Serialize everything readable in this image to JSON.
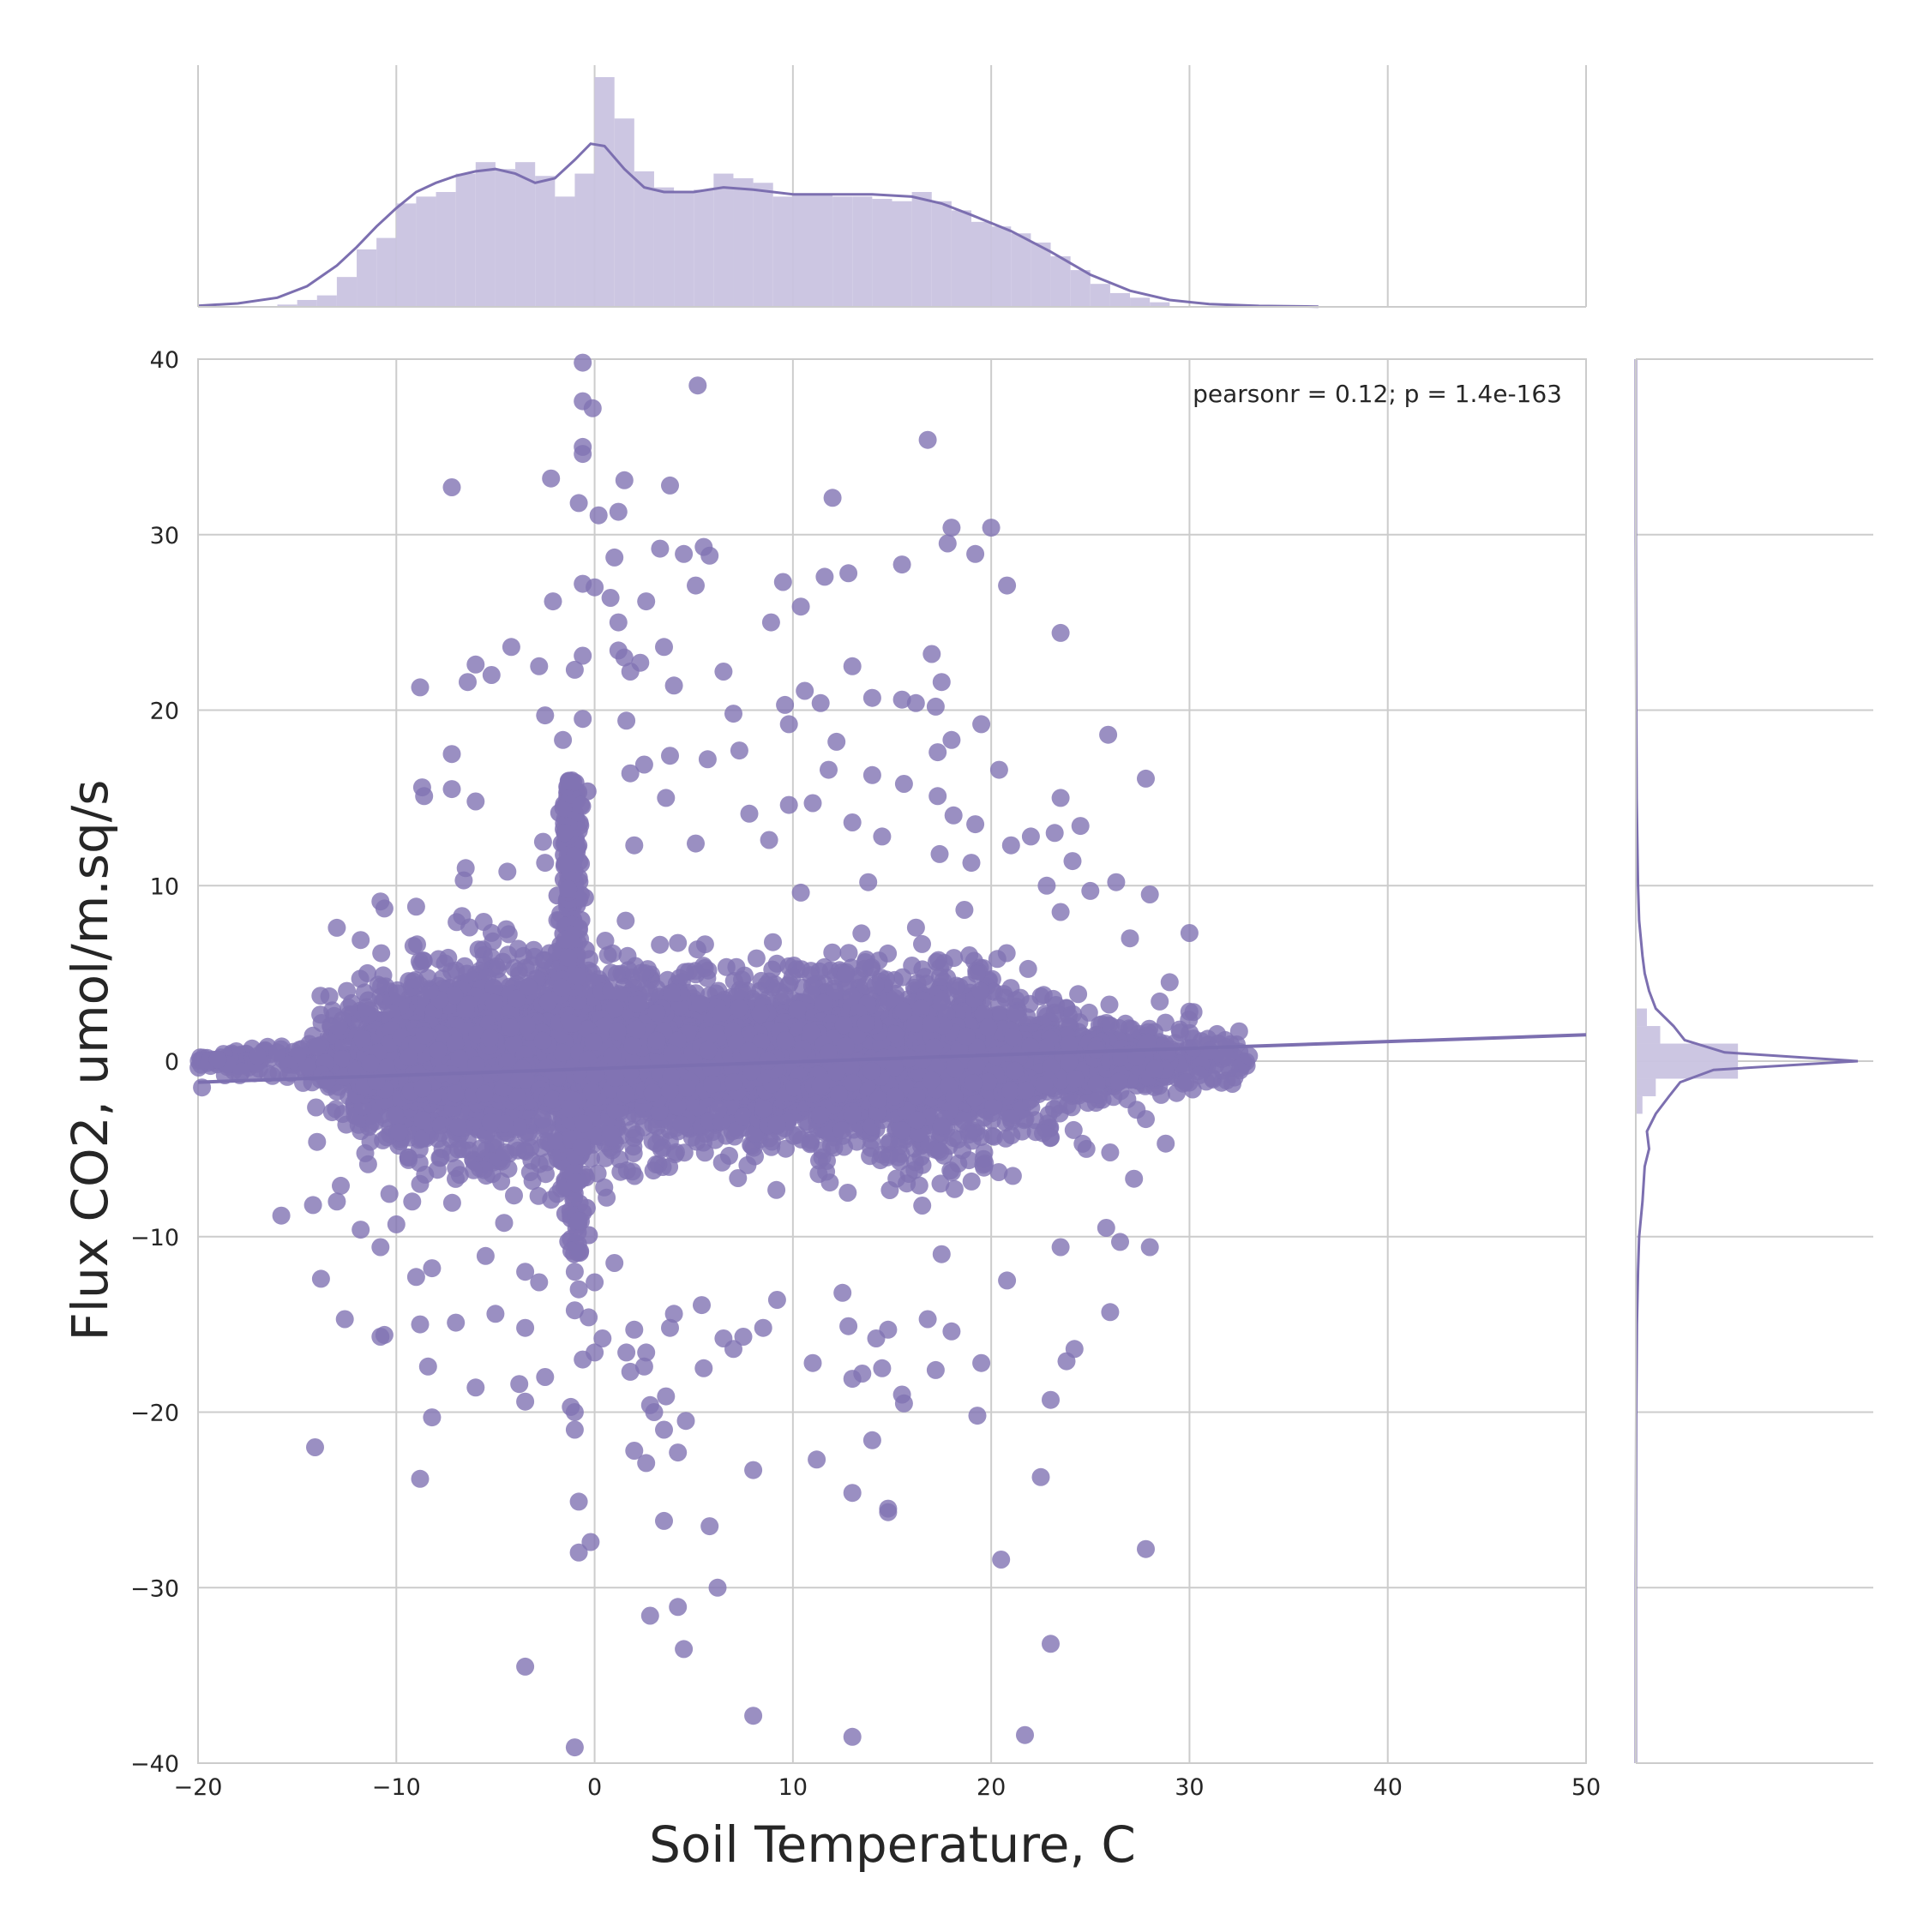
{
  "colors": {
    "point": "#8173b3",
    "kde": "#7c6fb0",
    "hist_fill": "#c9c3e0",
    "grid": "#cccccc",
    "spine": "#cccccc",
    "text": "#262626"
  },
  "chart_data": {
    "type": "scatter",
    "xlabel": "Soil Temperature, C",
    "ylabel": "Flux CO2, umol/m.sq/s",
    "xlim": [
      -20,
      50
    ],
    "ylim": [
      -40,
      40
    ],
    "xticks": [
      "−20",
      "−10",
      "0",
      "10",
      "20",
      "30",
      "40",
      "50"
    ],
    "xtick_values": [
      -20,
      -10,
      0,
      10,
      20,
      30,
      40,
      50
    ],
    "yticks": [
      "−40",
      "−30",
      "−20",
      "−10",
      "0",
      "10",
      "20",
      "30",
      "40"
    ],
    "ytick_values": [
      -40,
      -30,
      -20,
      -10,
      0,
      10,
      20,
      30,
      40
    ],
    "grid": true,
    "annotation": "pearsonr = 0.12; p = 1.4e-163",
    "dense_core": {
      "x_range": [
        -20,
        33
      ],
      "y_spread_per_x": [
        [
          -20,
          0.6
        ],
        [
          -15,
          1.2
        ],
        [
          -12,
          4.5
        ],
        [
          -8,
          6.0
        ],
        [
          -4,
          6.5
        ],
        [
          -1,
          7.0
        ],
        [
          0,
          6.0
        ],
        [
          3,
          5.5
        ],
        [
          6,
          5.0
        ],
        [
          10,
          5.5
        ],
        [
          15,
          6.5
        ],
        [
          20,
          5.5
        ],
        [
          25,
          4.0
        ],
        [
          28,
          3.0
        ],
        [
          31,
          1.5
        ],
        [
          33,
          0.8
        ]
      ]
    },
    "outliers": [
      [
        -0.6,
        39.8
      ],
      [
        5.2,
        38.5
      ],
      [
        -0.6,
        37.6
      ],
      [
        -0.1,
        37.2
      ],
      [
        16.8,
        35.4
      ],
      [
        -0.6,
        35.0
      ],
      [
        -0.6,
        34.6
      ],
      [
        -2.2,
        33.2
      ],
      [
        1.5,
        33.1
      ],
      [
        3.8,
        32.8
      ],
      [
        -7.2,
        32.7
      ],
      [
        -0.8,
        31.8
      ],
      [
        12.0,
        32.1
      ],
      [
        0.2,
        31.1
      ],
      [
        1.2,
        31.3
      ],
      [
        18.0,
        30.4
      ],
      [
        20.0,
        30.4
      ],
      [
        17.8,
        29.5
      ],
      [
        3.3,
        29.2
      ],
      [
        5.5,
        29.3
      ],
      [
        4.5,
        28.9
      ],
      [
        5.8,
        28.8
      ],
      [
        19.2,
        28.9
      ],
      [
        15.5,
        28.3
      ],
      [
        1.0,
        28.7
      ],
      [
        12.8,
        27.8
      ],
      [
        11.6,
        27.6
      ],
      [
        9.5,
        27.3
      ],
      [
        -0.6,
        27.2
      ],
      [
        0.0,
        27.0
      ],
      [
        5.1,
        27.1
      ],
      [
        20.8,
        27.1
      ],
      [
        0.8,
        26.4
      ],
      [
        2.6,
        26.2
      ],
      [
        -2.1,
        26.2
      ],
      [
        10.4,
        25.9
      ],
      [
        8.9,
        25.0
      ],
      [
        1.2,
        25.0
      ],
      [
        23.5,
        24.4
      ],
      [
        3.5,
        23.6
      ],
      [
        -4.2,
        23.6
      ],
      [
        1.2,
        23.4
      ],
      [
        17.0,
        23.2
      ],
      [
        -0.6,
        23.1
      ],
      [
        1.5,
        23.0
      ],
      [
        -6.0,
        22.6
      ],
      [
        -5.2,
        22.0
      ],
      [
        -2.8,
        22.5
      ],
      [
        2.3,
        22.7
      ],
      [
        1.8,
        22.2
      ],
      [
        -1.0,
        22.3
      ],
      [
        6.5,
        22.2
      ],
      [
        13.0,
        22.5
      ],
      [
        -6.4,
        21.6
      ],
      [
        -8.8,
        21.3
      ],
      [
        4.0,
        21.4
      ],
      [
        10.6,
        21.1
      ],
      [
        17.5,
        21.6
      ],
      [
        14.0,
        20.7
      ],
      [
        15.5,
        20.6
      ],
      [
        16.2,
        20.4
      ],
      [
        11.4,
        20.4
      ],
      [
        9.6,
        20.3
      ],
      [
        17.2,
        20.2
      ],
      [
        -2.5,
        19.7
      ],
      [
        7.0,
        19.8
      ],
      [
        19.5,
        19.2
      ],
      [
        9.8,
        19.2
      ],
      [
        -0.6,
        19.5
      ],
      [
        1.6,
        19.4
      ],
      [
        25.9,
        18.6
      ],
      [
        12.2,
        18.2
      ],
      [
        18.0,
        18.3
      ],
      [
        -1.6,
        18.3
      ],
      [
        27.8,
        16.1
      ],
      [
        7.3,
        17.7
      ],
      [
        -7.2,
        17.5
      ],
      [
        3.8,
        17.4
      ],
      [
        5.7,
        17.2
      ],
      [
        17.3,
        17.6
      ],
      [
        2.5,
        16.9
      ],
      [
        1.8,
        16.4
      ],
      [
        11.8,
        16.6
      ],
      [
        14.0,
        16.3
      ],
      [
        20.4,
        16.6
      ],
      [
        -8.7,
        15.6
      ],
      [
        -8.6,
        15.1
      ],
      [
        -7.2,
        15.5
      ],
      [
        3.6,
        15.0
      ],
      [
        15.6,
        15.8
      ],
      [
        17.3,
        15.1
      ],
      [
        23.5,
        15.0
      ],
      [
        -6.0,
        14.8
      ],
      [
        9.8,
        14.6
      ],
      [
        11.0,
        14.7
      ],
      [
        7.8,
        14.1
      ],
      [
        13.0,
        13.6
      ],
      [
        18.1,
        14.0
      ],
      [
        19.2,
        13.5
      ],
      [
        24.5,
        13.4
      ],
      [
        -1.5,
        13.0
      ],
      [
        -2.6,
        12.5
      ],
      [
        2.0,
        12.3
      ],
      [
        5.1,
        12.4
      ],
      [
        21.0,
        12.3
      ],
      [
        -2.5,
        11.3
      ],
      [
        -6.5,
        11.0
      ],
      [
        -4.4,
        10.8
      ],
      [
        -6.6,
        10.3
      ],
      [
        8.8,
        12.6
      ],
      [
        14.5,
        12.8
      ],
      [
        17.4,
        11.8
      ],
      [
        19.0,
        11.3
      ],
      [
        22.0,
        12.8
      ],
      [
        23.2,
        13.0
      ],
      [
        24.1,
        11.4
      ],
      [
        26.3,
        10.2
      ],
      [
        28.0,
        9.5
      ],
      [
        25.0,
        9.7
      ],
      [
        -10.8,
        9.1
      ],
      [
        -10.6,
        8.7
      ],
      [
        -13.0,
        7.6
      ],
      [
        -11.8,
        6.9
      ],
      [
        23.5,
        8.5
      ],
      [
        30.0,
        7.3
      ],
      [
        -9.0,
        8.8
      ],
      [
        22.8,
        10.0
      ],
      [
        13.8,
        10.2
      ],
      [
        10.4,
        9.6
      ],
      [
        27.0,
        7.0
      ],
      [
        -17.0,
        0.3
      ],
      [
        -18.5,
        -0.2
      ],
      [
        -19.8,
        -1.5
      ],
      [
        -16.0,
        0.5
      ],
      [
        -15.5,
        -0.9
      ],
      [
        -14.0,
        0.8
      ],
      [
        -13.5,
        -1.1
      ],
      [
        -19.0,
        0.1
      ],
      [
        -17.8,
        -0.6
      ],
      [
        31.0,
        0.6
      ],
      [
        32.5,
        1.7
      ],
      [
        33.0,
        0.3
      ],
      [
        31.8,
        1.2
      ],
      [
        32.0,
        -0.4
      ],
      [
        30.5,
        -0.8
      ],
      [
        29.8,
        -1.2
      ],
      [
        29.5,
        1.8
      ],
      [
        30.2,
        2.8
      ],
      [
        28.5,
        3.4
      ],
      [
        29.0,
        4.5
      ],
      [
        28.8,
        -4.7
      ],
      [
        27.8,
        -3.3
      ],
      [
        26.0,
        -5.2
      ],
      [
        27.2,
        -6.7
      ],
      [
        24.8,
        -5.0
      ],
      [
        -14.0,
        -4.6
      ],
      [
        -15.8,
        -8.8
      ],
      [
        -14.2,
        -8.2
      ],
      [
        -13.0,
        -8.0
      ],
      [
        -12.8,
        -7.1
      ],
      [
        -11.8,
        -9.6
      ],
      [
        -10.8,
        -10.6
      ],
      [
        -10.0,
        -9.3
      ],
      [
        -9.2,
        -8.0
      ],
      [
        -8.8,
        -7.0
      ],
      [
        -8.2,
        -11.8
      ],
      [
        -9.0,
        -12.3
      ],
      [
        -8.4,
        -17.4
      ],
      [
        -10.8,
        -15.7
      ],
      [
        -10.6,
        -15.6
      ],
      [
        -12.6,
        -14.7
      ],
      [
        -13.8,
        -12.4
      ],
      [
        -8.8,
        -15.0
      ],
      [
        -6.0,
        -18.6
      ],
      [
        -3.8,
        -18.4
      ],
      [
        -3.5,
        -19.4
      ],
      [
        -2.5,
        -18.0
      ],
      [
        -1.2,
        -19.7
      ],
      [
        -1.0,
        -20.0
      ],
      [
        -1.0,
        -21.0
      ],
      [
        -7.0,
        -14.9
      ],
      [
        -5.0,
        -14.4
      ],
      [
        -3.5,
        -15.2
      ],
      [
        -5.5,
        -11.1
      ],
      [
        -3.5,
        -12.0
      ],
      [
        -2.8,
        -12.6
      ],
      [
        -1.0,
        -12.0
      ],
      [
        -0.8,
        -13.0
      ],
      [
        -1.0,
        -14.2
      ],
      [
        -0.3,
        -14.6
      ],
      [
        0.0,
        -16.6
      ],
      [
        -0.6,
        -17.0
      ],
      [
        0.4,
        -15.8
      ],
      [
        0.0,
        -12.6
      ],
      [
        1.0,
        -11.5
      ],
      [
        2.0,
        -15.3
      ],
      [
        1.6,
        -16.6
      ],
      [
        1.8,
        -17.7
      ],
      [
        2.6,
        -16.6
      ],
      [
        2.5,
        -17.4
      ],
      [
        2.8,
        -19.6
      ],
      [
        3.6,
        -19.1
      ],
      [
        3.0,
        -20.0
      ],
      [
        2.0,
        -22.2
      ],
      [
        2.6,
        -22.9
      ],
      [
        3.5,
        -21.0
      ],
      [
        4.2,
        -22.3
      ],
      [
        4.6,
        -20.5
      ],
      [
        4.0,
        -14.4
      ],
      [
        3.8,
        -15.2
      ],
      [
        5.5,
        -17.5
      ],
      [
        5.4,
        -13.9
      ],
      [
        6.5,
        -15.8
      ],
      [
        7.0,
        -16.4
      ],
      [
        7.5,
        -15.7
      ],
      [
        8.5,
        -15.2
      ],
      [
        9.2,
        -13.6
      ],
      [
        11.0,
        -17.2
      ],
      [
        11.2,
        -22.7
      ],
      [
        12.8,
        -15.1
      ],
      [
        12.5,
        -13.2
      ],
      [
        13.0,
        -18.1
      ],
      [
        13.5,
        -17.8
      ],
      [
        14.0,
        -21.6
      ],
      [
        14.2,
        -15.8
      ],
      [
        14.8,
        -15.3
      ],
      [
        14.5,
        -17.5
      ],
      [
        15.5,
        -19.0
      ],
      [
        15.6,
        -19.5
      ],
      [
        17.2,
        -17.6
      ],
      [
        16.8,
        -14.7
      ],
      [
        18.0,
        -15.4
      ],
      [
        19.3,
        -20.2
      ],
      [
        19.5,
        -17.2
      ],
      [
        22.5,
        -23.7
      ],
      [
        23.0,
        -19.3
      ],
      [
        23.8,
        -17.1
      ],
      [
        24.2,
        -16.4
      ],
      [
        26.0,
        -14.3
      ],
      [
        26.5,
        -10.3
      ],
      [
        28.0,
        -10.6
      ],
      [
        23.5,
        -10.6
      ],
      [
        25.8,
        -9.5
      ],
      [
        20.8,
        -12.5
      ],
      [
        17.5,
        -11.0
      ],
      [
        -14.1,
        -22.0
      ],
      [
        -8.8,
        -23.8
      ],
      [
        -8.2,
        -20.3
      ],
      [
        -0.8,
        -25.1
      ],
      [
        -0.2,
        -27.4
      ],
      [
        -0.8,
        -28.0
      ],
      [
        2.8,
        -31.6
      ],
      [
        4.2,
        -31.1
      ],
      [
        4.5,
        -33.5
      ],
      [
        5.8,
        -26.5
      ],
      [
        6.2,
        -30.0
      ],
      [
        3.5,
        -26.2
      ],
      [
        8.0,
        -23.3
      ],
      [
        13.0,
        -24.6
      ],
      [
        14.8,
        -25.5
      ],
      [
        14.8,
        -25.7
      ],
      [
        20.5,
        -28.4
      ],
      [
        27.8,
        -27.8
      ],
      [
        23.0,
        -33.2
      ],
      [
        -3.5,
        -34.5
      ],
      [
        -1.0,
        -39.1
      ],
      [
        8.0,
        -37.3
      ],
      [
        13.0,
        -38.5
      ],
      [
        21.7,
        -38.4
      ]
    ],
    "regression_line": {
      "x": [
        -20,
        50
      ],
      "y": [
        -1.2,
        1.5
      ]
    },
    "marginal_x": {
      "bin_edges": [
        -20,
        50
      ],
      "bin_width": 1,
      "hist_bins": [
        [
          -16,
          0.01
        ],
        [
          -15,
          0.03
        ],
        [
          -14,
          0.05
        ],
        [
          -13,
          0.13
        ],
        [
          -12,
          0.25
        ],
        [
          -11,
          0.3
        ],
        [
          -10,
          0.45
        ],
        [
          -9,
          0.48
        ],
        [
          -8,
          0.5
        ],
        [
          -7,
          0.58
        ],
        [
          -6,
          0.63
        ],
        [
          -5,
          0.6
        ],
        [
          -4,
          0.63
        ],
        [
          -3,
          0.57
        ],
        [
          -2,
          0.48
        ],
        [
          -1,
          0.58
        ],
        [
          0,
          1.0
        ],
        [
          1,
          0.82
        ],
        [
          2,
          0.59
        ],
        [
          3,
          0.52
        ],
        [
          4,
          0.5
        ],
        [
          5,
          0.51
        ],
        [
          6,
          0.58
        ],
        [
          7,
          0.56
        ],
        [
          8,
          0.54
        ],
        [
          9,
          0.48
        ],
        [
          10,
          0.49
        ],
        [
          11,
          0.49
        ],
        [
          12,
          0.48
        ],
        [
          13,
          0.48
        ],
        [
          14,
          0.47
        ],
        [
          15,
          0.46
        ],
        [
          16,
          0.5
        ],
        [
          17,
          0.46
        ],
        [
          18,
          0.42
        ],
        [
          19,
          0.37
        ],
        [
          20,
          0.35
        ],
        [
          21,
          0.32
        ],
        [
          22,
          0.28
        ],
        [
          23,
          0.22
        ],
        [
          24,
          0.16
        ],
        [
          25,
          0.1
        ],
        [
          26,
          0.06
        ],
        [
          27,
          0.04
        ],
        [
          28,
          0.02
        ]
      ],
      "kde": [
        [
          -20,
          0.005
        ],
        [
          -18,
          0.015
        ],
        [
          -16,
          0.04
        ],
        [
          -14.5,
          0.09
        ],
        [
          -13,
          0.18
        ],
        [
          -12,
          0.26
        ],
        [
          -11,
          0.35
        ],
        [
          -10,
          0.43
        ],
        [
          -9,
          0.5
        ],
        [
          -8,
          0.54
        ],
        [
          -7,
          0.57
        ],
        [
          -6,
          0.59
        ],
        [
          -5,
          0.6
        ],
        [
          -4,
          0.58
        ],
        [
          -3,
          0.54
        ],
        [
          -2,
          0.56
        ],
        [
          -1,
          0.64
        ],
        [
          -0.2,
          0.71
        ],
        [
          0.5,
          0.7
        ],
        [
          1.5,
          0.6
        ],
        [
          2.5,
          0.52
        ],
        [
          3.5,
          0.5
        ],
        [
          5,
          0.5
        ],
        [
          6.5,
          0.52
        ],
        [
          8,
          0.51
        ],
        [
          10,
          0.49
        ],
        [
          12,
          0.49
        ],
        [
          14,
          0.49
        ],
        [
          16,
          0.48
        ],
        [
          17.5,
          0.45
        ],
        [
          19,
          0.4
        ],
        [
          21,
          0.33
        ],
        [
          23,
          0.24
        ],
        [
          25,
          0.14
        ],
        [
          27,
          0.07
        ],
        [
          29,
          0.03
        ],
        [
          31,
          0.012
        ],
        [
          33.5,
          0.004
        ],
        [
          36.5,
          0.001
        ]
      ]
    },
    "marginal_y": {
      "hist_bins": [
        [
          -1,
          0.46
        ],
        [
          0,
          0.46
        ],
        [
          1,
          0.11
        ],
        [
          -2,
          0.09
        ],
        [
          2,
          0.05
        ],
        [
          -3,
          0.03
        ]
      ],
      "kde": [
        [
          -40,
          0.0
        ],
        [
          -30,
          0.0
        ],
        [
          -20,
          0.002
        ],
        [
          -15,
          0.005
        ],
        [
          -12,
          0.01
        ],
        [
          -10,
          0.015
        ],
        [
          -8,
          0.03
        ],
        [
          -6,
          0.04
        ],
        [
          -5,
          0.06
        ],
        [
          -4,
          0.05
        ],
        [
          -3,
          0.09
        ],
        [
          -2,
          0.15
        ],
        [
          -1.2,
          0.2
        ],
        [
          -0.5,
          0.35
        ],
        [
          0,
          1.0
        ],
        [
          0.5,
          0.4
        ],
        [
          1.2,
          0.22
        ],
        [
          2,
          0.17
        ],
        [
          3,
          0.09
        ],
        [
          4,
          0.06
        ],
        [
          5,
          0.04
        ],
        [
          6,
          0.03
        ],
        [
          8,
          0.015
        ],
        [
          10,
          0.01
        ],
        [
          15,
          0.004
        ],
        [
          20,
          0.002
        ],
        [
          30,
          0.0
        ],
        [
          40,
          0.0
        ]
      ]
    }
  }
}
